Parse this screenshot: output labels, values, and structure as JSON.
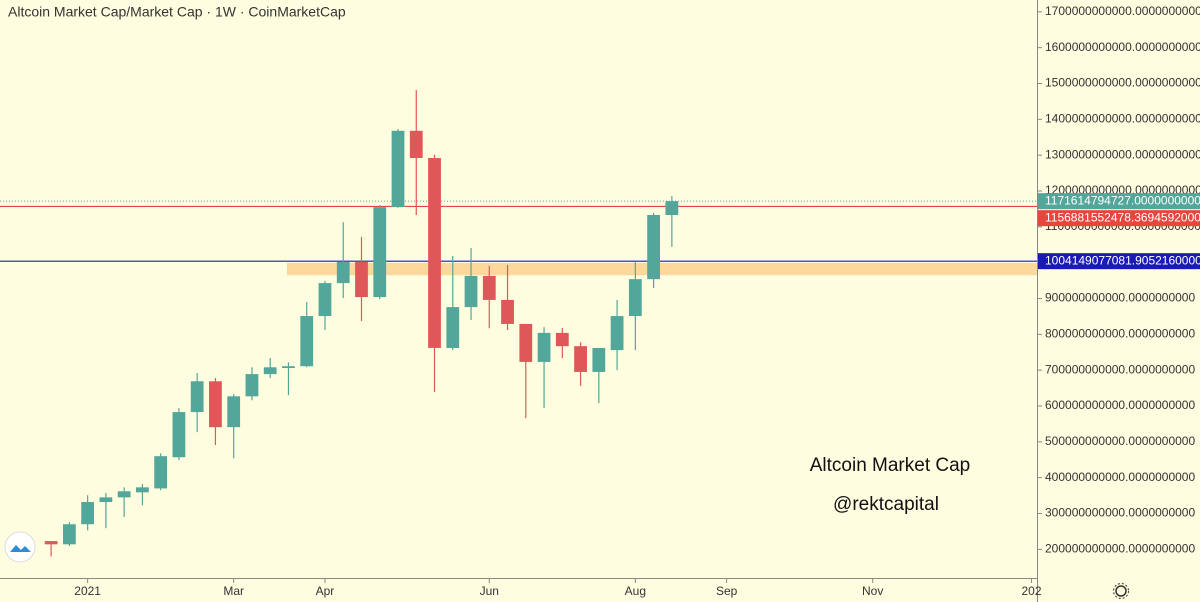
{
  "chart_data": {
    "type": "candlestick",
    "title": "Altcoin Market Cap/Market Cap · 1W · CoinMarketCap",
    "annotations": [
      "Altcoin Market Cap",
      "@rektcapital"
    ],
    "up_color": "#53a69a",
    "down_color": "#e0575a",
    "categories": [
      null,
      null,
      null,
      null,
      null,
      null,
      null,
      null,
      null,
      null,
      null,
      null,
      null,
      null,
      null,
      null,
      null,
      null,
      null,
      null,
      null,
      null,
      null,
      null,
      null,
      null,
      null,
      null,
      null,
      null,
      null,
      null,
      null,
      null,
      null
    ],
    "open": [
      223000000000.0,
      214000000000.0,
      270000000000.0,
      332000000000.0,
      345000000000.0,
      359000000000.0,
      370000000000.0,
      457000000000.0,
      583000000000.0,
      669000000000.0,
      541000000000.0,
      627000000000.0,
      689000000000.0,
      706000000000.0,
      711000000000.0,
      851000000000.0,
      943000000000.0,
      1002000000000.0,
      904000000000.0,
      1155000000000.0,
      1368000000000.0,
      1292000000000.0,
      762000000000.0,
      876000000000.0,
      963000000000.0,
      896000000000.0,
      829000000000.0,
      723000000000.0,
      804000000000.0,
      767000000000.0,
      695000000000.0,
      756000000000.0,
      851000000000.0,
      954000000000.0,
      1133000000000.0
    ],
    "high": [
      223000000000.0,
      276000000000.0,
      351000000000.0,
      357000000000.0,
      373000000000.0,
      382000000000.0,
      468000000000.0,
      594000000000.0,
      692000000000.0,
      678000000000.0,
      633000000000.0,
      708000000000.0,
      734000000000.0,
      722000000000.0,
      890000000000.0,
      949000000000.0,
      1113000000000.0,
      1072000000000.0,
      1161000000000.0,
      1373000000000.0,
      1482000000000.0,
      1301000000000.0,
      1019000000000.0,
      1041000000000.0,
      991000000000.0,
      994000000000.0,
      823000000000.0,
      820000000000.0,
      818000000000.0,
      778000000000.0,
      762000000000.0,
      896000000000.0,
      1002000000000.0,
      1139000000000.0,
      1186000000000.0
    ],
    "low": [
      180000000000.0,
      209000000000.0,
      253000000000.0,
      259000000000.0,
      290000000000.0,
      323000000000.0,
      365000000000.0,
      449000000000.0,
      527000000000.0,
      491000000000.0,
      454000000000.0,
      616000000000.0,
      678000000000.0,
      630000000000.0,
      708000000000.0,
      812000000000.0,
      901000000000.0,
      837000000000.0,
      898000000000.0,
      1153000000000.0,
      1133000000000.0,
      639000000000.0,
      756000000000.0,
      840000000000.0,
      817000000000.0,
      812000000000.0,
      566000000000.0,
      594000000000.0,
      734000000000.0,
      656000000000.0,
      608000000000.0,
      700000000000.0,
      756000000000.0,
      929000000000.0,
      1044000000000.0
    ],
    "close": [
      214000000000.0,
      270000000000.0,
      332000000000.0,
      345000000000.0,
      362000000000.0,
      373000000000.0,
      460000000000.0,
      583000000000.0,
      669000000000.0,
      541000000000.0,
      627000000000.0,
      689000000000.0,
      708000000000.0,
      711000000000.0,
      851000000000.0,
      943000000000.0,
      1002000000000.0,
      904000000000.0,
      1155000000000.0,
      1368000000000.0,
      1292000000000.0,
      762000000000.0,
      876000000000.0,
      963000000000.0,
      896000000000.0,
      829000000000.0,
      723000000000.0,
      804000000000.0,
      767000000000.0,
      695000000000.0,
      762000000000.0,
      851000000000.0,
      954000000000.0,
      1133000000000.0,
      1171614794727
    ],
    "xlim": [
      -2.8,
      54
    ],
    "xticks": [
      {
        "value": 2,
        "label": "2021"
      },
      {
        "value": 10,
        "label": "Mar"
      },
      {
        "value": 15,
        "label": "Apr"
      },
      {
        "value": 24,
        "label": "Jun"
      },
      {
        "value": 32,
        "label": "Aug"
      },
      {
        "value": 37,
        "label": "Sep"
      },
      {
        "value": 45,
        "label": "Nov"
      },
      {
        "value": 53.7,
        "label": "202"
      }
    ],
    "ylim": [
      120000000000.0,
      1733000000000.0
    ],
    "yticks": [
      {
        "value": 200000000000.0,
        "label": "200000000000.0000000000"
      },
      {
        "value": 300000000000.0,
        "label": "300000000000.0000000000"
      },
      {
        "value": 400000000000.0,
        "label": "400000000000.0000000000"
      },
      {
        "value": 500000000000.0,
        "label": "500000000000.0000000000"
      },
      {
        "value": 600000000000.0,
        "label": "600000000000.0000000000"
      },
      {
        "value": 700000000000.0,
        "label": "700000000000.0000000000"
      },
      {
        "value": 800000000000.0,
        "label": "800000000000.0000000000"
      },
      {
        "value": 900000000000.0,
        "label": "900000000000.0000000000"
      },
      {
        "value": 1000000000000.0,
        "label": "1000000000000.0000000000"
      },
      {
        "value": 1100000000000.0,
        "label": "1100000000000.0000000000"
      },
      {
        "value": 1200000000000.0,
        "label": "1200000000000.0000000000"
      },
      {
        "value": 1300000000000.0,
        "label": "1300000000000.0000000000"
      },
      {
        "value": 1400000000000.0,
        "label": "1400000000000.0000000000"
      },
      {
        "value": 1500000000000.0,
        "label": "1500000000000.0000000000"
      },
      {
        "value": 1600000000000.0,
        "label": "1600000000000.0000000000"
      },
      {
        "value": 1700000000000.0,
        "label": "1700000000000.0000000000"
      }
    ],
    "zone": {
      "range": [
        965000000000.0,
        999000000000.0
      ],
      "color": "#fcd99a"
    },
    "lines": [
      {
        "value": 1156881552478.3694,
        "label": "1156881552478.3694592000",
        "color": "#e8453c"
      },
      {
        "value": 1004149077081.9053,
        "label": "1004149077081.9052160000",
        "color": "#1a1ab4"
      }
    ],
    "last_price": {
      "value": 1171614794727,
      "label": "1171614794727.0000000000",
      "color": "#53a69a"
    }
  }
}
